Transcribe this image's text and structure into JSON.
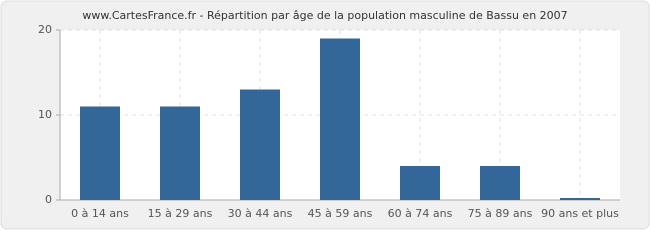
{
  "chart_data": {
    "type": "bar",
    "title": "www.CartesFrance.fr - Répartition par âge de la population masculine de Bassu en 2007",
    "categories": [
      "0 à 14 ans",
      "15 à 29 ans",
      "30 à 44 ans",
      "45 à 59 ans",
      "60 à 74 ans",
      "75 à 89 ans",
      "90 ans et plus"
    ],
    "values": [
      11,
      11,
      13,
      19,
      4,
      4,
      0
    ],
    "color": "#336699",
    "ylim": [
      0,
      20
    ],
    "yticks": [
      0,
      10,
      20
    ],
    "grid": true
  }
}
